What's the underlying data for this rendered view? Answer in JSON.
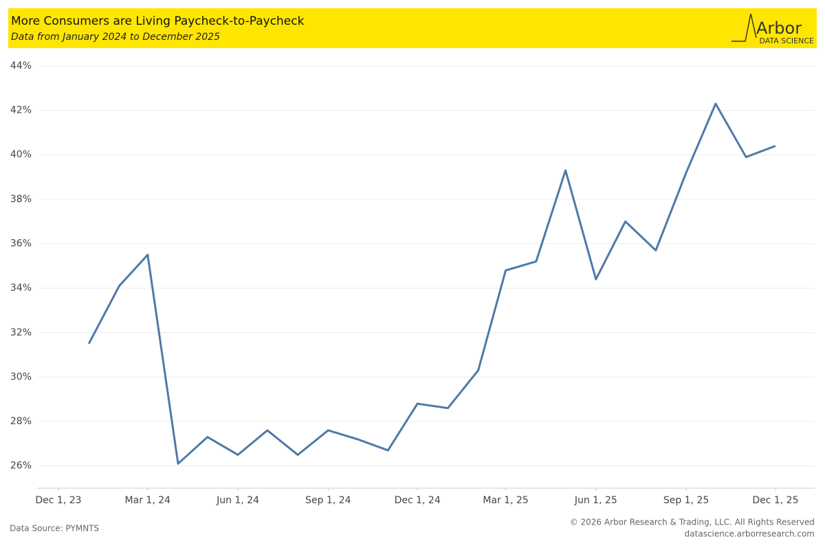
{
  "chart_data": {
    "type": "line",
    "title": "More Consumers are Living Paycheck-to-Paycheck",
    "subtitle": "Data from January 2024 to December 2025",
    "logo": {
      "name": "Arbor",
      "tagline": "DATA SCIENCE"
    },
    "source": "Data Source: PYMNTS",
    "copyright": "© 2026 Arbor Research & Trading, LLC. All Rights Reserved",
    "website": "datascience.arborresearch.com",
    "x": [
      "2024-01-01",
      "2024-02-01",
      "2024-03-01",
      "2024-04-01",
      "2024-05-01",
      "2024-06-01",
      "2024-07-01",
      "2024-08-01",
      "2024-09-01",
      "2024-10-01",
      "2024-11-01",
      "2024-12-01",
      "2025-01-01",
      "2025-02-01",
      "2025-03-01",
      "2025-04-01",
      "2025-05-01",
      "2025-06-01",
      "2025-07-01",
      "2025-08-01",
      "2025-09-01",
      "2025-10-01",
      "2025-11-01",
      "2025-12-01"
    ],
    "series": [
      {
        "name": "Paycheck-to-Paycheck",
        "color": "#4e79a7",
        "values": [
          31.5,
          34.1,
          35.5,
          26.1,
          27.3,
          26.5,
          27.6,
          26.5,
          27.6,
          27.2,
          26.7,
          28.8,
          28.6,
          30.3,
          34.8,
          35.2,
          39.3,
          34.4,
          37.0,
          35.7,
          39.2,
          42.3,
          39.9,
          40.4
        ]
      }
    ],
    "xlim": [
      "2023-11-10",
      "2026-01-10"
    ],
    "xticks": [
      {
        "value": "2023-12-01",
        "label": "Dec 1, 23"
      },
      {
        "value": "2024-03-01",
        "label": "Mar 1, 24"
      },
      {
        "value": "2024-06-01",
        "label": "Jun 1, 24"
      },
      {
        "value": "2024-09-01",
        "label": "Sep 1, 24"
      },
      {
        "value": "2024-12-01",
        "label": "Dec 1, 24"
      },
      {
        "value": "2025-03-01",
        "label": "Mar 1, 25"
      },
      {
        "value": "2025-06-01",
        "label": "Jun 1, 25"
      },
      {
        "value": "2025-09-01",
        "label": "Sep 1, 25"
      },
      {
        "value": "2025-12-01",
        "label": "Dec 1, 25"
      }
    ],
    "ylim": [
      25,
      44.4
    ],
    "yticks": [
      {
        "value": 26,
        "label": "26%"
      },
      {
        "value": 28,
        "label": "28%"
      },
      {
        "value": 30,
        "label": "30%"
      },
      {
        "value": 32,
        "label": "32%"
      },
      {
        "value": 34,
        "label": "34%"
      },
      {
        "value": 36,
        "label": "36%"
      },
      {
        "value": 38,
        "label": "38%"
      },
      {
        "value": 40,
        "label": "40%"
      },
      {
        "value": 42,
        "label": "42%"
      },
      {
        "value": 44,
        "label": "44%"
      }
    ],
    "grid": true
  }
}
